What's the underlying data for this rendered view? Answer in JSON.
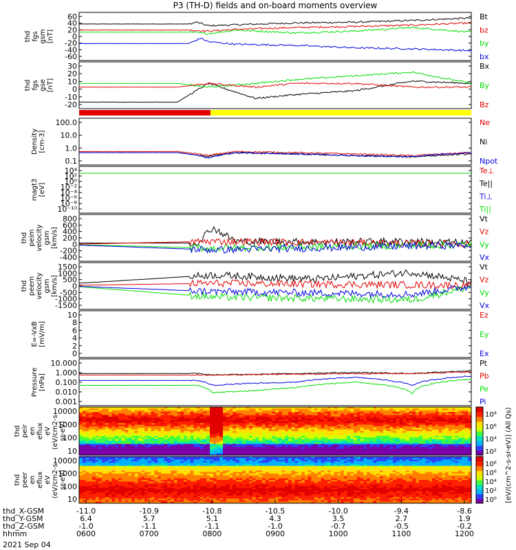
{
  "title": "P3 (TH-D) fields and on-board moments overview",
  "date_label": "2021 Sep 04",
  "colors": {
    "black": "#000000",
    "red": "#e00000",
    "green": "#00dd00",
    "blue": "#0000dd",
    "yellow": "#ffff00"
  },
  "chart_data": [
    {
      "type": "line",
      "panel": "fgs-gsm-1",
      "ylabel": [
        "thd",
        "fgs",
        "gsm",
        "[nT]"
      ],
      "yticks": [
        "60",
        "40",
        "20",
        "0",
        "-20",
        "-40",
        "-60"
      ],
      "ylim": [
        -60,
        60
      ],
      "legend": [
        {
          "name": "Bt",
          "color": "black"
        },
        {
          "name": "bz",
          "color": "red"
        },
        {
          "name": "by",
          "color": "green"
        },
        {
          "name": "bx",
          "color": "blue"
        }
      ],
      "series": [
        {
          "name": "Bt",
          "color": "black",
          "x": [
            0,
            0.28,
            0.3,
            0.33,
            0.4,
            0.55,
            0.7,
            0.85,
            1.0
          ],
          "y": [
            35,
            35,
            40,
            30,
            33,
            38,
            40,
            45,
            52
          ]
        },
        {
          "name": "bz",
          "color": "red",
          "x": [
            0,
            0.28,
            0.33,
            0.4,
            0.55,
            0.7,
            0.85,
            1.0
          ],
          "y": [
            18,
            18,
            15,
            20,
            25,
            28,
            32,
            38
          ]
        },
        {
          "name": "by",
          "color": "green",
          "x": [
            0,
            0.28,
            0.33,
            0.4,
            0.55,
            0.7,
            0.85,
            1.0
          ],
          "y": [
            12,
            12,
            8,
            18,
            10,
            15,
            25,
            12
          ]
        },
        {
          "name": "bx",
          "color": "blue",
          "x": [
            0,
            0.28,
            0.31,
            0.33,
            0.4,
            0.55,
            0.7,
            0.85,
            1.0
          ],
          "y": [
            -20,
            -20,
            -5,
            -15,
            -22,
            -25,
            -32,
            -35,
            -40
          ]
        }
      ]
    },
    {
      "type": "line",
      "panel": "fgs-gse",
      "ylabel": [
        "thd",
        "fgs",
        "gse",
        "[nT]"
      ],
      "yticks": [
        "30",
        "20",
        "10",
        "0",
        "-10",
        "-20"
      ],
      "ylim": [
        -25,
        30
      ],
      "legend": [
        {
          "name": "Bx",
          "color": "black"
        },
        {
          "name": "By",
          "color": "green"
        },
        {
          "name": "Bz",
          "color": "red"
        }
      ],
      "series": [
        {
          "name": "Bx",
          "color": "black",
          "x": [
            0,
            0.25,
            0.33,
            0.45,
            0.55,
            0.7,
            0.85,
            1.0
          ],
          "y": [
            -20,
            -20,
            5,
            -15,
            -10,
            -5,
            8,
            5
          ]
        },
        {
          "name": "By",
          "color": "green",
          "x": [
            0,
            0.25,
            0.33,
            0.45,
            0.55,
            0.7,
            0.85,
            1.0
          ],
          "y": [
            5,
            5,
            0,
            5,
            10,
            15,
            20,
            5
          ]
        },
        {
          "name": "Bz",
          "color": "red",
          "x": [
            0,
            0.25,
            0.33,
            0.45,
            0.55,
            0.7,
            0.85,
            1.0
          ],
          "y": [
            0,
            0,
            5,
            0,
            5,
            5,
            0,
            0
          ]
        }
      ]
    },
    {
      "type": "bar",
      "panel": "mode-bar",
      "segments": [
        {
          "from": 0,
          "to": 0.335,
          "color": "red"
        },
        {
          "from": 0.335,
          "to": 1.0,
          "color": "yellow"
        }
      ]
    },
    {
      "type": "line",
      "panel": "density",
      "scale": "log",
      "ylabel": [
        "Density",
        "[cm-3]"
      ],
      "yticks": [
        "100.0",
        "10.0",
        "1.0",
        "0.1"
      ],
      "ylim": [
        0.1,
        100
      ],
      "legend": [
        {
          "name": "Ne",
          "color": "red"
        },
        {
          "name": "Ni",
          "color": "black"
        },
        {
          "name": "Npot",
          "color": "blue"
        }
      ],
      "series": [
        {
          "name": "Ne",
          "color": "red",
          "x": [
            0,
            0.25,
            0.33,
            0.4,
            0.55,
            0.7,
            0.85,
            1.0
          ],
          "y": [
            0.6,
            0.6,
            0.3,
            0.6,
            0.5,
            0.4,
            0.3,
            0.5
          ]
        },
        {
          "name": "Ni",
          "color": "black",
          "x": [
            0,
            0.25,
            0.33,
            0.4,
            0.55,
            0.7,
            0.85,
            1.0
          ],
          "y": [
            0.5,
            0.5,
            0.25,
            0.5,
            0.4,
            0.3,
            0.25,
            0.4
          ]
        },
        {
          "name": "Npot",
          "color": "blue",
          "x": [
            0,
            0.25,
            0.33,
            0.4,
            0.55,
            0.7,
            0.85,
            1.0
          ],
          "y": [
            0.5,
            0.5,
            0.2,
            0.5,
            0.4,
            0.3,
            0.25,
            0.5
          ]
        }
      ]
    },
    {
      "type": "line",
      "panel": "temperature",
      "scale": "log",
      "ylabel": [
        "magt3",
        "[eV]"
      ],
      "yticks": [
        "10⁴",
        "10²",
        "10⁰",
        "10⁻²",
        "10⁻⁴",
        "10⁻⁶",
        "10⁻⁸",
        "10⁻¹⁰"
      ],
      "legend": [
        {
          "name": "Te⊥",
          "color": "red"
        },
        {
          "name": "Te||",
          "color": "black"
        },
        {
          "name": "Ti⊥",
          "color": "blue"
        },
        {
          "name": "Ti||",
          "color": "green"
        }
      ],
      "series": [
        {
          "name": "Te⊥",
          "color": "red",
          "x": [
            0,
            1
          ],
          "y": [
            3000,
            3000
          ]
        },
        {
          "name": "Te||",
          "color": "black",
          "x": [
            0,
            1
          ],
          "y": [
            4000,
            4000
          ]
        },
        {
          "name": "Ti⊥",
          "color": "blue",
          "x": [
            0,
            1
          ],
          "y": [
            6000,
            6000
          ]
        },
        {
          "name": "Ti||",
          "color": "green",
          "x": [
            0,
            1
          ],
          "y": [
            5000,
            5000
          ]
        }
      ]
    },
    {
      "type": "line",
      "panel": "peim-velocity",
      "ylabel": [
        "thd",
        "peim",
        "velocity",
        "gsm",
        "[km/s]"
      ],
      "yticks": [
        "800",
        "600",
        "400",
        "200",
        "0",
        "-200",
        "-400"
      ],
      "ylim": [
        -400,
        800
      ],
      "legend": [
        {
          "name": "Vt",
          "color": "black"
        },
        {
          "name": "Vz",
          "color": "red"
        },
        {
          "name": "Vy",
          "color": "green"
        },
        {
          "name": "Vx",
          "color": "blue"
        }
      ],
      "series": [
        {
          "name": "Vt",
          "color": "black",
          "x": [
            0,
            0.3,
            0.34,
            0.4,
            0.6,
            0.85,
            1.0
          ],
          "y": [
            50,
            50,
            500,
            100,
            80,
            100,
            50
          ]
        },
        {
          "name": "Vz",
          "color": "red",
          "x": [
            0,
            0.34,
            1.0
          ],
          "y": [
            20,
            100,
            20
          ]
        },
        {
          "name": "Vy",
          "color": "green",
          "x": [
            0,
            0.34,
            1.0
          ],
          "y": [
            0,
            -100,
            0
          ]
        },
        {
          "name": "Vx",
          "color": "blue",
          "x": [
            0,
            0.34,
            1.0
          ],
          "y": [
            -10,
            -150,
            -10
          ]
        }
      ]
    },
    {
      "type": "line",
      "panel": "peem-velocity",
      "ylabel": [
        "thd",
        "peem",
        "velocity",
        "gsm",
        "[km/s]"
      ],
      "yticks": [
        "1500",
        "1000",
        "500",
        "0",
        "-500",
        "-1000",
        "-1500"
      ],
      "ylim": [
        -1500,
        1500
      ],
      "legend": [
        {
          "name": "Vt",
          "color": "black"
        },
        {
          "name": "Vz",
          "color": "red"
        },
        {
          "name": "Vy",
          "color": "green"
        },
        {
          "name": "Vx",
          "color": "blue"
        }
      ],
      "series": [
        {
          "name": "Vt",
          "color": "black",
          "x": [
            0,
            0.34,
            0.6,
            0.85,
            1.0
          ],
          "y": [
            200,
            800,
            500,
            1000,
            300
          ]
        },
        {
          "name": "Vz",
          "color": "red",
          "x": [
            0,
            0.34,
            1.0
          ],
          "y": [
            50,
            200,
            50
          ]
        },
        {
          "name": "Vy",
          "color": "green",
          "x": [
            0,
            0.34,
            0.85,
            1.0
          ],
          "y": [
            -50,
            -800,
            -1000,
            -50
          ]
        },
        {
          "name": "Vx",
          "color": "blue",
          "x": [
            0,
            0.34,
            0.85,
            1.0
          ],
          "y": [
            -30,
            -400,
            -600,
            -30
          ]
        }
      ]
    },
    {
      "type": "line",
      "panel": "e-field",
      "ylabel": [
        "E=-VxB",
        "[mV/m]"
      ],
      "yticks": [
        "10",
        "8",
        "6",
        "4",
        "2",
        "0"
      ],
      "ylim": [
        0,
        10
      ],
      "legend": [
        {
          "name": "Ez",
          "color": "red"
        },
        {
          "name": "Ey",
          "color": "green"
        },
        {
          "name": "Ex",
          "color": "blue"
        }
      ],
      "series": []
    },
    {
      "type": "line",
      "panel": "pressure",
      "scale": "log",
      "ylabel": [
        "Pressure",
        "[nPa]"
      ],
      "yticks": [
        "10.000",
        "1.000",
        "0.100",
        "0.010",
        "0.001"
      ],
      "ylim": [
        0.001,
        10
      ],
      "legend": [
        {
          "name": "Pt",
          "color": "black"
        },
        {
          "name": "Pb",
          "color": "red"
        },
        {
          "name": "Pe",
          "color": "green"
        },
        {
          "name": "Pi",
          "color": "blue"
        }
      ],
      "series": [
        {
          "name": "Pt",
          "color": "black",
          "x": [
            0,
            0.3,
            0.34,
            0.55,
            0.7,
            0.85,
            1.0
          ],
          "y": [
            0.7,
            0.7,
            0.5,
            0.7,
            0.9,
            0.7,
            1.3
          ]
        },
        {
          "name": "Pb",
          "color": "red",
          "x": [
            0,
            0.3,
            0.34,
            0.55,
            0.7,
            0.85,
            1.0
          ],
          "y": [
            0.5,
            0.5,
            0.5,
            0.6,
            0.7,
            0.7,
            1.0
          ]
        },
        {
          "name": "Pe",
          "color": "green",
          "x": [
            0,
            0.3,
            0.34,
            0.45,
            0.55,
            0.7,
            0.85,
            1.0
          ],
          "y": [
            0.05,
            0.05,
            0.01,
            0.015,
            0.03,
            0.1,
            0.008,
            0.2
          ]
        },
        {
          "name": "Pi",
          "color": "blue",
          "x": [
            0,
            0.3,
            0.34,
            0.45,
            0.55,
            0.7,
            0.85,
            1.0
          ],
          "y": [
            0.15,
            0.15,
            0.05,
            0.08,
            0.1,
            0.3,
            0.05,
            0.4
          ]
        }
      ]
    },
    {
      "type": "heatmap",
      "panel": "peir-spectrogram",
      "scale": "log",
      "ylabel": [
        "thd",
        "peir",
        "en",
        "eflux",
        "eV",
        "(eV/cm2-s-",
        "sr-eV)"
      ],
      "yticks": [
        "10000",
        "1000",
        "100",
        "10"
      ],
      "ylim": [
        10,
        20000
      ],
      "colorbar_ticks": [
        "10⁸",
        "10⁶",
        "10⁴",
        "10²"
      ],
      "colorbar_label": "[eV/(cm^2-s-sr-eV)] (All Qs)"
    },
    {
      "type": "heatmap",
      "panel": "peer-spectrogram",
      "scale": "log",
      "ylabel": [
        "thd",
        "peer",
        "en",
        "eflux",
        "eV",
        "(eV/cm2-s-",
        "sr-eV)"
      ],
      "yticks": [
        "10000",
        "1000",
        "100",
        "10"
      ],
      "ylim": [
        10,
        20000
      ],
      "colorbar_ticks": [
        "10⁸",
        "10⁶",
        "10⁴",
        "10²",
        "10⁰"
      ],
      "colorbar_label": "[eV/(cm^2-s-sr-eV)] (All Qs)"
    }
  ],
  "x_axis": {
    "row_labels": [
      "thd_X-GSM",
      "thd_Y-GSM",
      "thd_Z-GSM",
      "hhmm"
    ],
    "ticks": [
      {
        "x": "-11.0",
        "y": "6.4",
        "z": "-1.0",
        "time": "0600"
      },
      {
        "x": "-10.9",
        "y": "5.7",
        "z": "-1.1",
        "time": "0700"
      },
      {
        "x": "-10.8",
        "y": "5.1",
        "z": "-1.1",
        "time": "0800"
      },
      {
        "x": "-10.5",
        "y": "4.3",
        "z": "-1.0",
        "time": "0900"
      },
      {
        "x": "-10.0",
        "y": "3.5",
        "z": "-0.7",
        "time": "1000"
      },
      {
        "x": "-9.4",
        "y": "2.7",
        "z": "-0.5",
        "time": "1100"
      },
      {
        "x": "-8.6",
        "y": "1.9",
        "z": "-0.2",
        "time": "1200"
      }
    ]
  }
}
